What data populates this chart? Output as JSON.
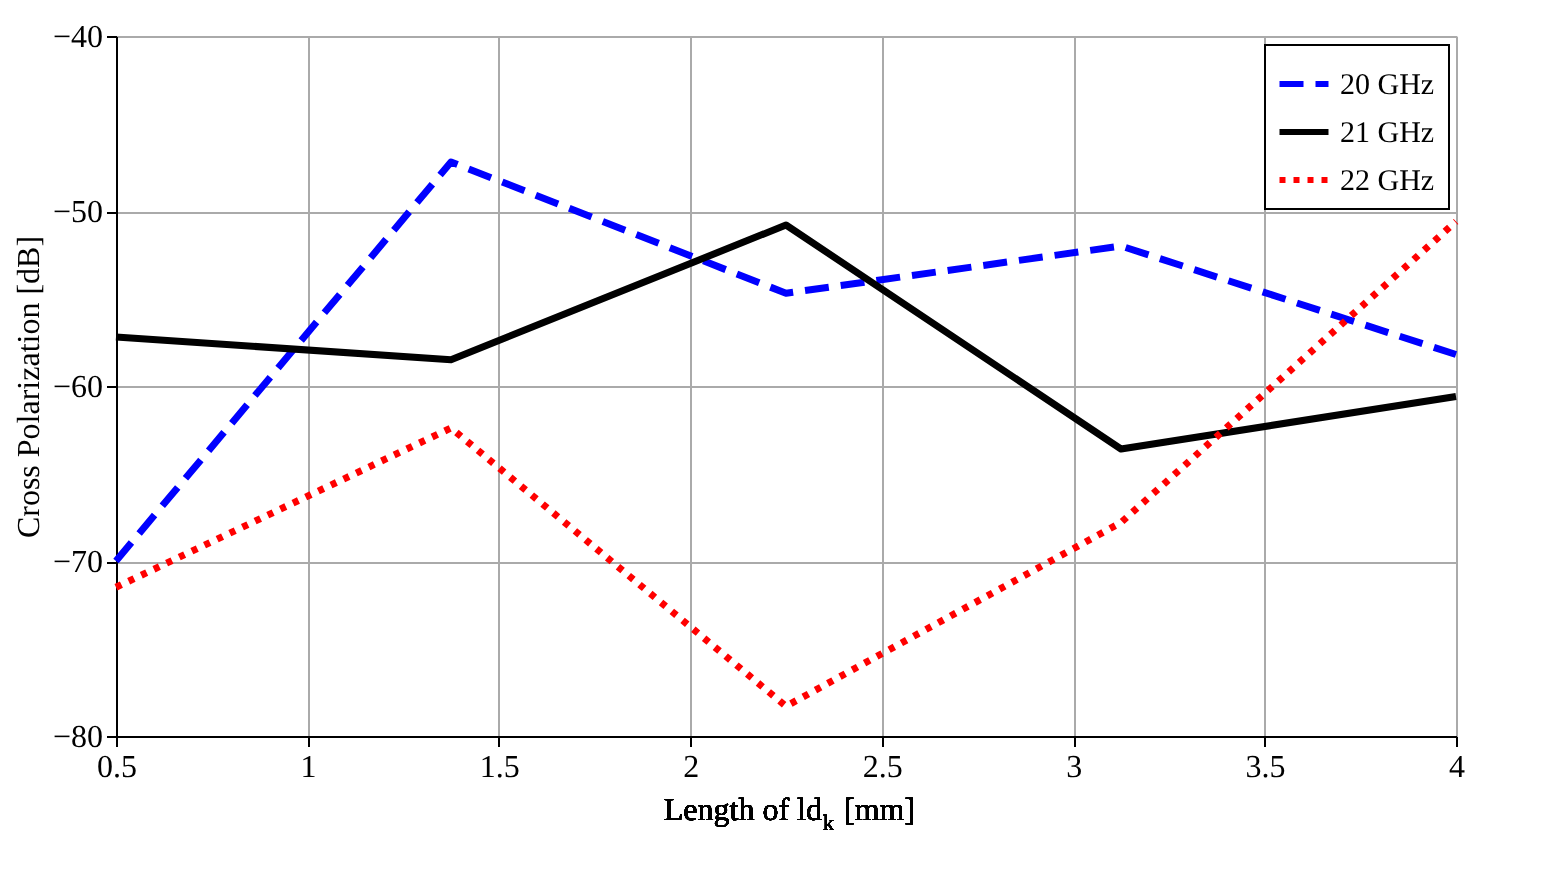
{
  "chart_data": {
    "type": "line",
    "xlabel": "Length of ld$_{k}$ [mm]",
    "ylabel": "Cross Polarization [dB]",
    "x": [
      0.5,
      1.375,
      2.25,
      3.125,
      4
    ],
    "xlim": [
      0.5,
      4
    ],
    "xticks": [
      0.5,
      1,
      1.5,
      2,
      2.5,
      3,
      3.5,
      4
    ],
    "ylim": [
      -80,
      -40
    ],
    "yticks": [
      -80,
      -70,
      -60,
      -50,
      -40
    ],
    "grid": true,
    "legend": "top right",
    "marker": "none",
    "series": [
      {
        "name": "20 GHz",
        "color": "#0000ff",
        "line_style": "dashed",
        "values": [
          -70.0,
          -47.2,
          -54.7,
          -52.0,
          -58.2
        ]
      },
      {
        "name": "21 GHz",
        "color": "#000000",
        "line_style": "solid",
        "values": [
          -57.2,
          -58.5,
          -50.8,
          -63.6,
          -60.6
        ]
      },
      {
        "name": "22 GHz",
        "color": "#ff0000",
        "line_style": "dotted",
        "values": [
          -71.5,
          -62.4,
          -78.3,
          -67.8,
          -50.6
        ]
      }
    ]
  }
}
